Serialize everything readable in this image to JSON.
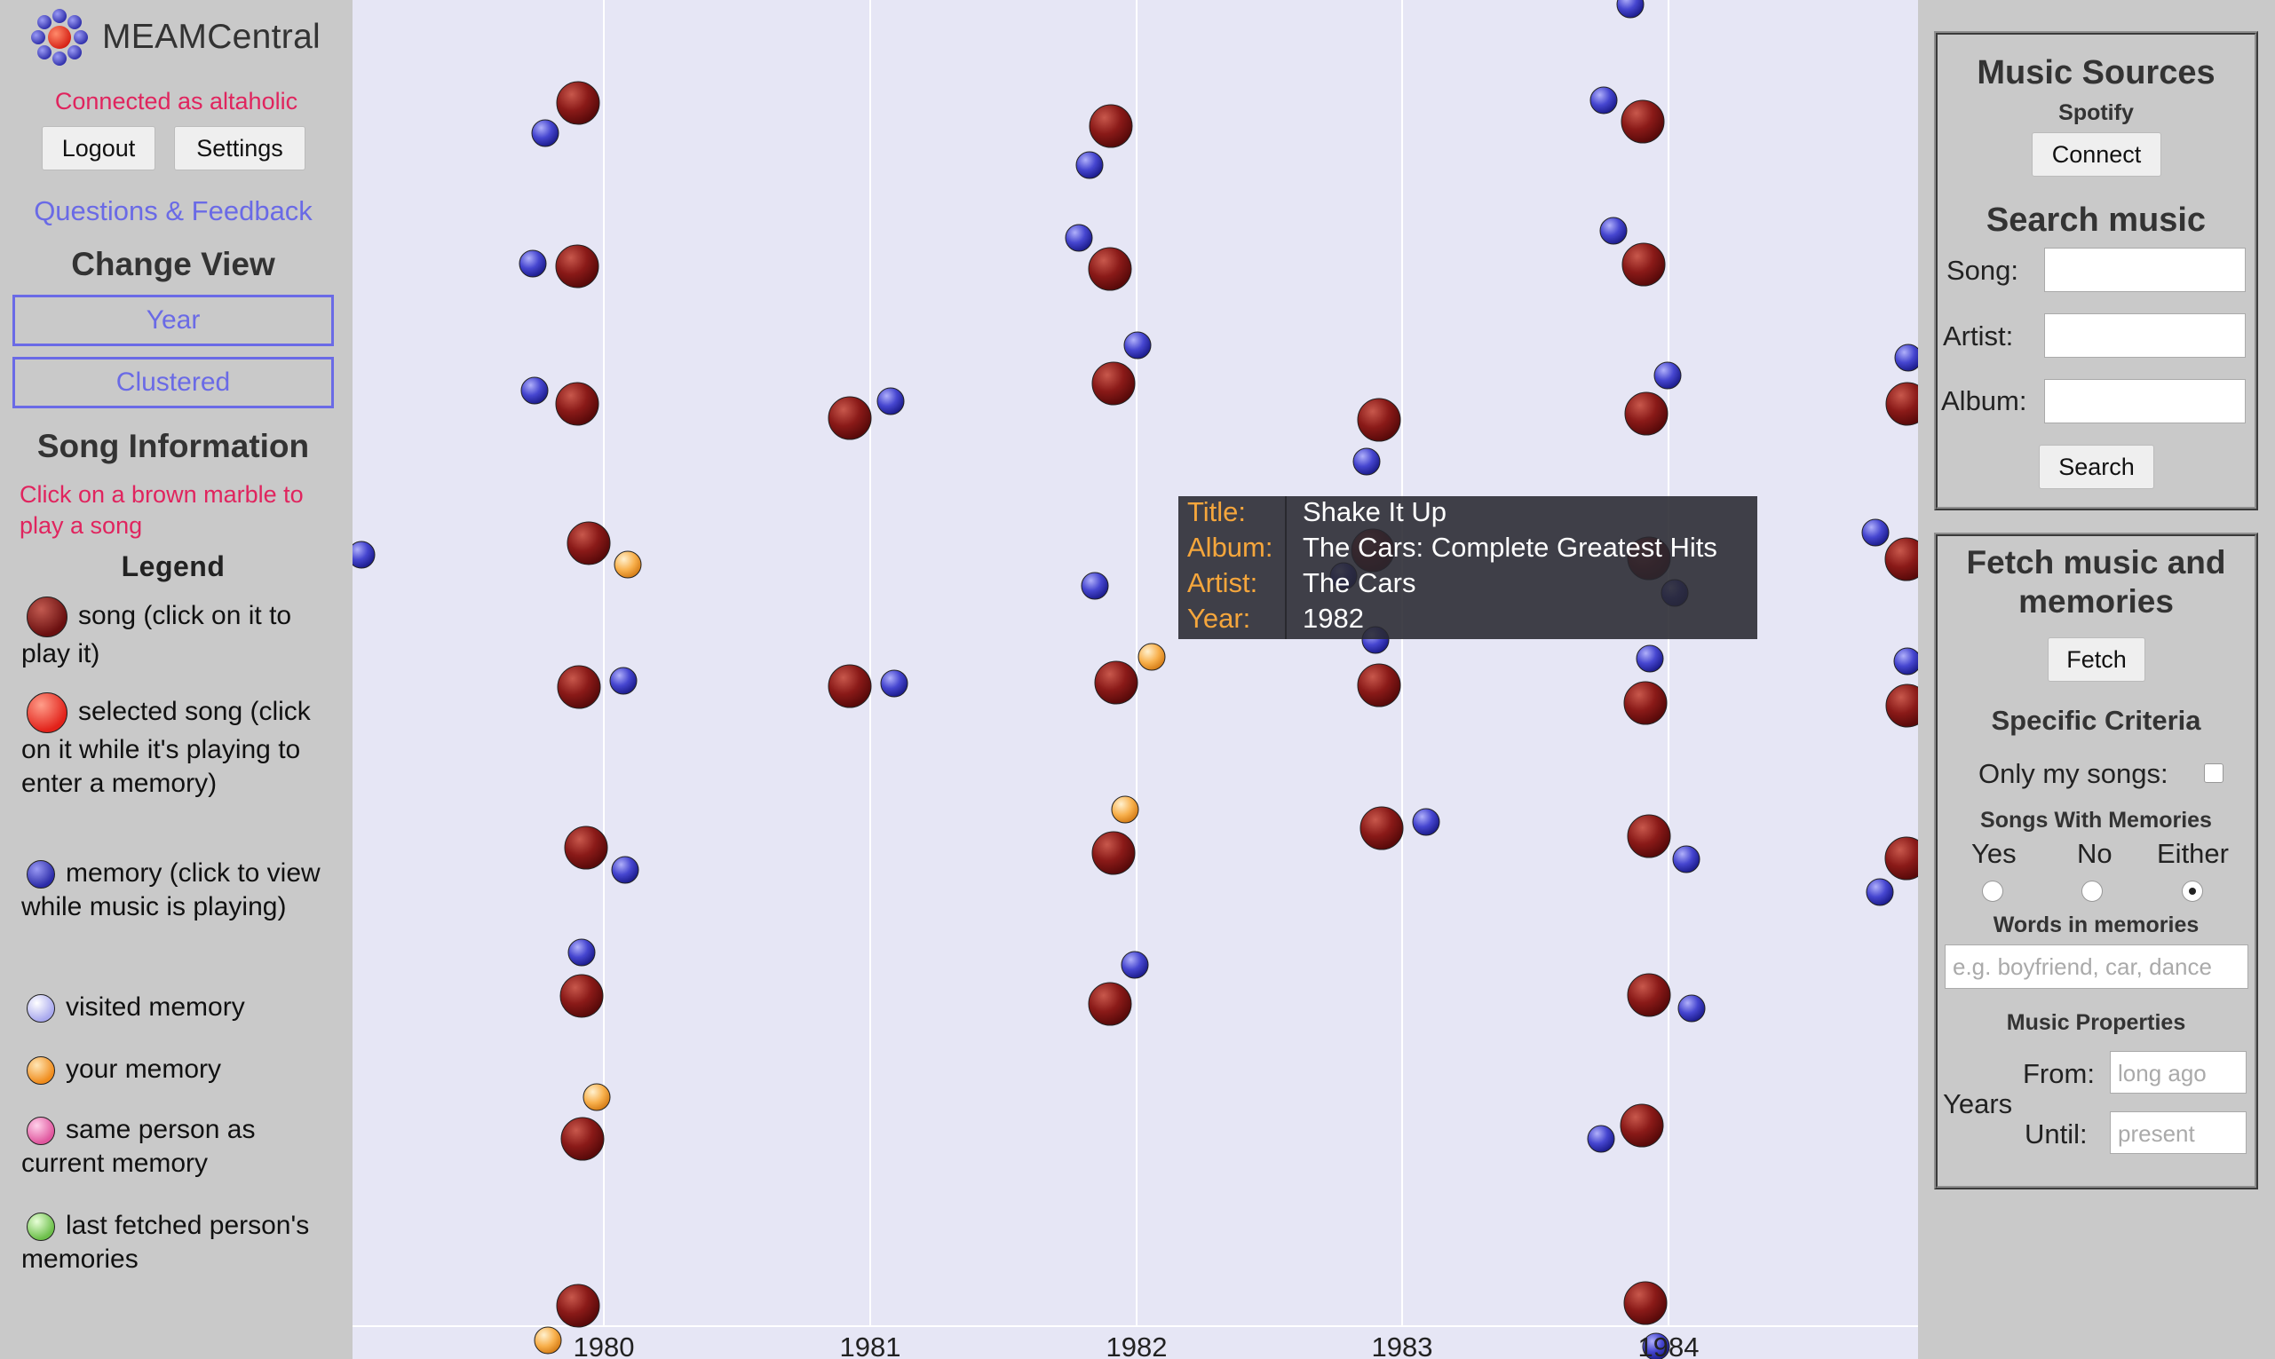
{
  "app": {
    "title": "MEAMCentral"
  },
  "account": {
    "status": "Connected as altaholic",
    "logout_label": "Logout",
    "settings_label": "Settings"
  },
  "links": {
    "feedback": "Questions & Feedback"
  },
  "change_view": {
    "heading": "Change View",
    "options": [
      "Year",
      "Clustered"
    ]
  },
  "song_info": {
    "heading": "Song Information",
    "hint": "Click on a brown marble to play a song"
  },
  "legend": {
    "heading": "Legend",
    "items": [
      {
        "label": "song (click on it to play it)",
        "color": "#8b1c1c"
      },
      {
        "label": "selected song (click on it while it's playing to enter a memory)",
        "color": "#f03a2e"
      },
      {
        "label": "memory (click to view while music is playing)",
        "color": "#3d3dc4"
      },
      {
        "label": "visited memory",
        "color": "#c5c5f5"
      },
      {
        "label": "your memory",
        "color": "#f7b455"
      },
      {
        "label": "same person as current memory",
        "color": "#f08ac4"
      },
      {
        "label": "last fetched person's memories",
        "color": "#9bd67a"
      }
    ]
  },
  "timeline": {
    "years": [
      "1980",
      "1981",
      "1982",
      "1983",
      "1984"
    ],
    "colors": {
      "song": "#8b1c1c",
      "memory": "#3d3dc4",
      "your_memory": "#f7b455",
      "background": "#e6e6f5"
    }
  },
  "tooltip": {
    "rows": [
      {
        "key": "Title:",
        "value": "Shake It Up"
      },
      {
        "key": "Album:",
        "value": "The Cars: Complete Greatest Hits"
      },
      {
        "key": "Artist:",
        "value": "The Cars"
      },
      {
        "key": "Year:",
        "value": "1982"
      }
    ]
  },
  "music_sources": {
    "heading": "Music Sources",
    "source": "Spotify",
    "connect_label": "Connect"
  },
  "search": {
    "heading": "Search music",
    "song_label": "Song:",
    "artist_label": "Artist:",
    "album_label": "Album:",
    "song_value": "",
    "artist_value": "",
    "album_value": "",
    "button_label": "Search"
  },
  "fetch": {
    "heading": "Fetch music and memories",
    "button_label": "Fetch",
    "criteria_heading": "Specific Criteria",
    "only_my_songs_label": "Only my songs:",
    "only_my_songs_checked": false,
    "with_memories_heading": "Songs With Memories",
    "with_memories_options": [
      "Yes",
      "No",
      "Either"
    ],
    "with_memories_selected": "Either",
    "words_heading": "Words in memories",
    "words_placeholder": "e.g. boyfriend, car, dance",
    "properties_heading": "Music Properties",
    "years_label": "Years",
    "from_label": "From:",
    "from_placeholder": "long ago",
    "until_label": "Until:",
    "until_placeholder": "present"
  }
}
